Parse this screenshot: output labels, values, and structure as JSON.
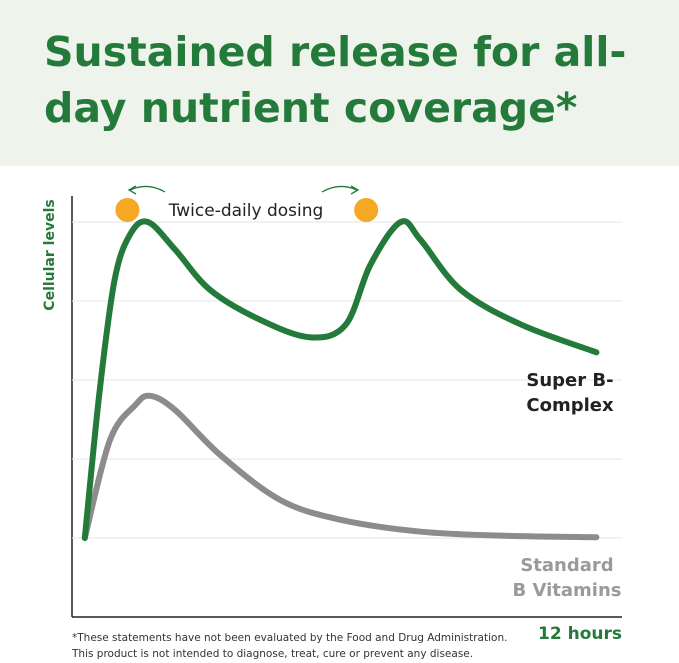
{
  "chart_data": {
    "type": "line",
    "title": "Sustained release for all-day nutrient coverage*",
    "y_label": "Cellular levels",
    "x_label": "12 hours",
    "annotation": "Twice-daily dosing",
    "dose_times": [
      1.0,
      6.6
    ],
    "dose_color": "#f5a823",
    "xlim": [
      -0.3,
      12.6
    ],
    "ylim": [
      0,
      5
    ],
    "yticks": [
      1,
      2,
      3,
      4,
      5
    ],
    "show_tick_labels": false,
    "grid": true,
    "series": [
      {
        "name": "Super B-Complex",
        "color": "#237a3a",
        "label_color": "#222222",
        "x": [
          0,
          0.35,
          0.7,
          1.06,
          1.48,
          2.12,
          2.94,
          4.12,
          5.29,
          6.12,
          6.7,
          7.41,
          7.88,
          8.82,
          10.24,
          12
        ],
        "values": [
          1.0,
          2.87,
          4.27,
          4.84,
          5.0,
          4.65,
          4.14,
          3.76,
          3.54,
          3.7,
          4.46,
          5.0,
          4.77,
          4.14,
          3.7,
          3.35
        ]
      },
      {
        "name": "Standard B Vitamins",
        "color": "#8c8c8c",
        "label_color": "#9a9a9a",
        "x": [
          0,
          0.59,
          1.18,
          1.53,
          2.12,
          3.18,
          4.59,
          6,
          7.88,
          9.76,
          12
        ],
        "values": [
          1.0,
          2.24,
          2.68,
          2.8,
          2.62,
          2.05,
          1.48,
          1.23,
          1.08,
          1.03,
          1.01
        ]
      }
    ],
    "footnote": [
      "*These statements have not been evaluated by the Food and Drug Administration.",
      "This product is not intended to diagnose, treat, cure or prevent any disease."
    ]
  }
}
